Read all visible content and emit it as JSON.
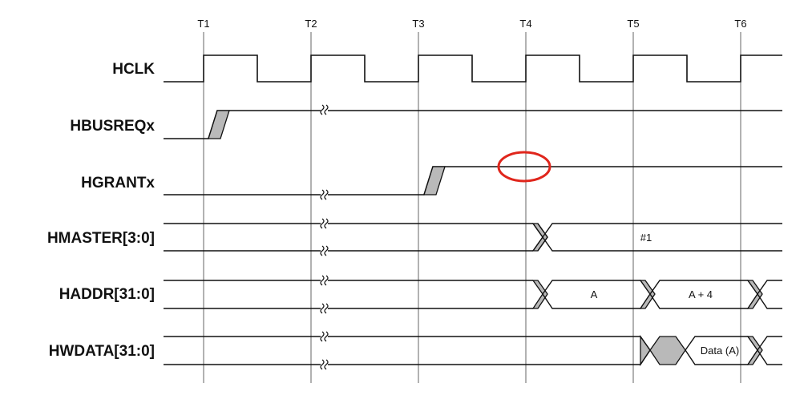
{
  "time_markers": [
    "T1",
    "T2",
    "T3",
    "T4",
    "T5",
    "T6"
  ],
  "signals": {
    "hclk": "HCLK",
    "hbusreq": "HBUSREQx",
    "hgrant": "HGRANTx",
    "hmaster": "HMASTER[3:0]",
    "haddr": "HADDR[31:0]",
    "hwdata": "HWDATA[31:0]"
  },
  "values": {
    "hmaster": "#1",
    "haddr_a": "A",
    "haddr_a4": "A + 4",
    "hwdata_a": "Data (A)"
  },
  "colors": {
    "highlight_ellipse": "#e0261c",
    "transition_shade": "#b9b9b9"
  }
}
